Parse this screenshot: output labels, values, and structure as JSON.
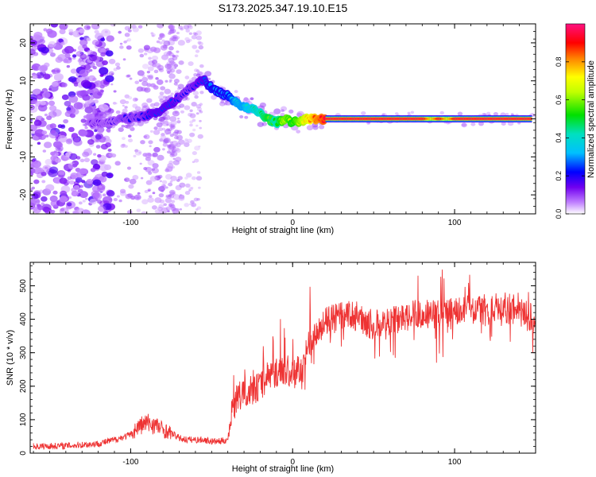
{
  "title": "S173.2025.347.19.10.E15",
  "chart_data": [
    {
      "type": "heatmap",
      "xlabel": "Height of straight line (km)",
      "ylabel": "Frequency (Hz)",
      "xlim": [
        -162,
        150
      ],
      "ylim": [
        -25,
        25
      ],
      "xticks": [
        -100,
        0,
        100
      ],
      "yticks": [
        -20,
        -10,
        0,
        10,
        20
      ],
      "colorbar": {
        "label": "Normalized spectral amplitude",
        "range": [
          0,
          1
        ],
        "ticks": [
          0.0,
          0.2,
          0.4,
          0.6,
          0.8
        ],
        "ticklabels": [
          "0.0",
          "0.2",
          "0.4",
          "0.6",
          "0.8"
        ]
      },
      "ridge": {
        "x": [
          -125,
          -115,
          -105,
          -95,
          -85,
          -75,
          -65,
          -55,
          -50,
          -45,
          -40,
          -35,
          -30,
          -25,
          -20,
          -15,
          -10,
          -5,
          0,
          5,
          10,
          15,
          20,
          40,
          60,
          80,
          85,
          90,
          95,
          100,
          120,
          140,
          148
        ],
        "freq": [
          -1,
          -1,
          0,
          0.5,
          1.5,
          4,
          7.5,
          10.5,
          8,
          7,
          6,
          4.5,
          3,
          2.5,
          1.5,
          0,
          -1,
          0,
          -1,
          -0.5,
          0,
          0,
          0,
          0,
          0,
          0,
          0,
          0,
          0,
          0,
          0,
          0,
          0
        ],
        "amplitude": [
          0.15,
          0.15,
          0.2,
          0.2,
          0.25,
          0.25,
          0.2,
          0.25,
          0.3,
          0.3,
          0.3,
          0.4,
          0.4,
          0.45,
          0.5,
          0.6,
          0.5,
          0.7,
          0.6,
          0.7,
          0.8,
          0.9,
          0.95,
          0.95,
          0.95,
          0.95,
          0.75,
          0.95,
          0.75,
          0.95,
          0.95,
          0.95,
          0.95
        ]
      }
    },
    {
      "type": "line",
      "xlabel": "Height of straight line (km)",
      "ylabel": "SNR (10 * v/v)",
      "xlim": [
        -162,
        150
      ],
      "ylim": [
        0,
        570
      ],
      "xticks": [
        -100,
        0,
        100
      ],
      "yticks": [
        0,
        100,
        200,
        300,
        400,
        500
      ],
      "series": [
        {
          "name": "SNR",
          "color": "#ee3333",
          "x": [
            -160,
            -140,
            -120,
            -110,
            -100,
            -95,
            -90,
            -85,
            -80,
            -75,
            -70,
            -65,
            -60,
            -55,
            -50,
            -45,
            -40,
            -38,
            -35,
            -30,
            -25,
            -20,
            -15,
            -10,
            -5,
            0,
            5,
            10,
            15,
            20,
            25,
            30,
            40,
            50,
            60,
            70,
            80,
            90,
            100,
            110,
            120,
            130,
            140,
            150
          ],
          "y": [
            20,
            22,
            28,
            40,
            55,
            80,
            90,
            85,
            70,
            60,
            45,
            40,
            40,
            40,
            35,
            35,
            40,
            120,
            160,
            180,
            190,
            200,
            230,
            240,
            250,
            230,
            260,
            320,
            370,
            390,
            400,
            410,
            410,
            380,
            395,
            410,
            420,
            415,
            425,
            430,
            420,
            425,
            420,
            400
          ]
        }
      ]
    }
  ]
}
